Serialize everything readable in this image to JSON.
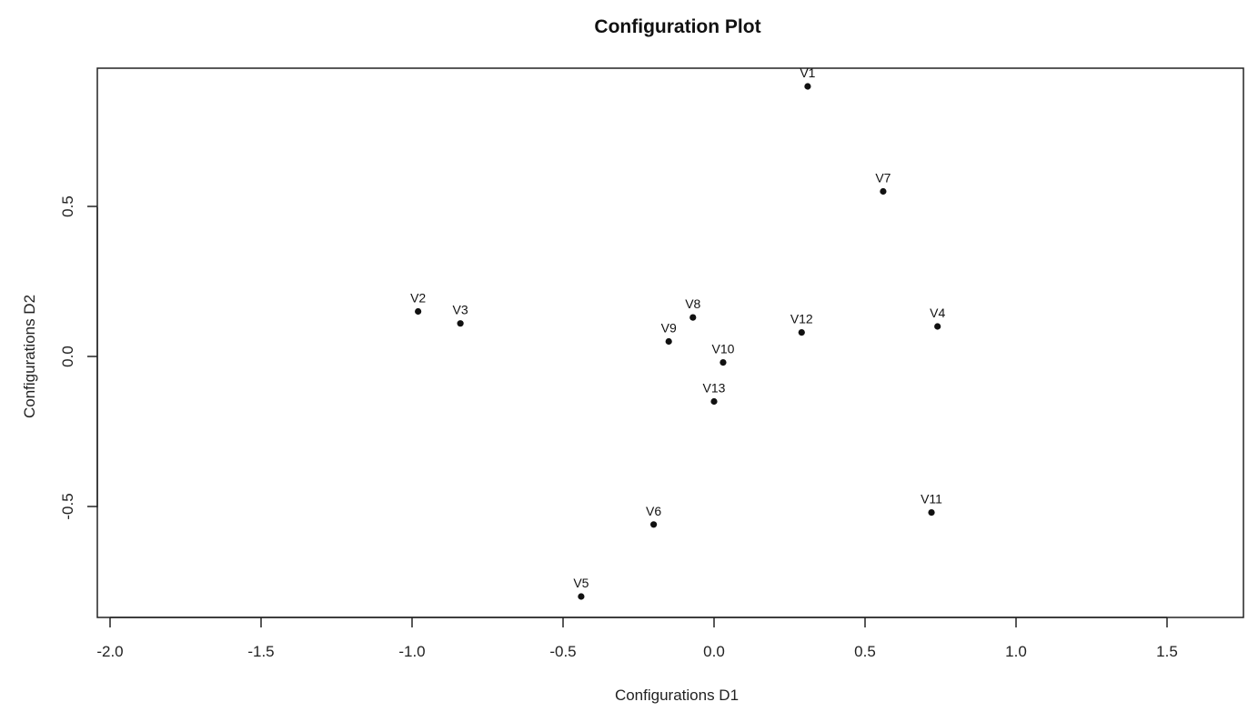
{
  "chart_data": {
    "type": "scatter",
    "title": "Configuration Plot",
    "xlabel": "Configurations D1",
    "ylabel": "Configurations D2",
    "xlim": [
      -2.0,
      1.75
    ],
    "ylim": [
      -0.87,
      0.96
    ],
    "xticks": [
      -2.0,
      -1.5,
      -1.0,
      -0.5,
      0.0,
      0.5,
      1.0,
      1.5
    ],
    "xtick_labels": [
      "-2.0",
      "-1.5",
      "-1.0",
      "-0.5",
      "0.0",
      "0.5",
      "1.0",
      "1.5"
    ],
    "yticks": [
      -0.5,
      0.0,
      0.5
    ],
    "ytick_labels": [
      "-0.5",
      "0.0",
      "0.5"
    ],
    "grid": false,
    "points": [
      {
        "label": "V1",
        "x": 0.31,
        "y": 0.9
      },
      {
        "label": "V2",
        "x": -0.98,
        "y": 0.15
      },
      {
        "label": "V3",
        "x": -0.84,
        "y": 0.11
      },
      {
        "label": "V4",
        "x": 0.74,
        "y": 0.1
      },
      {
        "label": "V5",
        "x": -0.44,
        "y": -0.8
      },
      {
        "label": "V6",
        "x": -0.2,
        "y": -0.56
      },
      {
        "label": "V7",
        "x": 0.56,
        "y": 0.55
      },
      {
        "label": "V8",
        "x": -0.07,
        "y": 0.13
      },
      {
        "label": "V9",
        "x": -0.15,
        "y": 0.05
      },
      {
        "label": "V10",
        "x": 0.03,
        "y": -0.02
      },
      {
        "label": "V11",
        "x": 0.72,
        "y": -0.52
      },
      {
        "label": "V12",
        "x": 0.29,
        "y": 0.08
      },
      {
        "label": "V13",
        "x": 0.0,
        "y": -0.15
      }
    ]
  }
}
